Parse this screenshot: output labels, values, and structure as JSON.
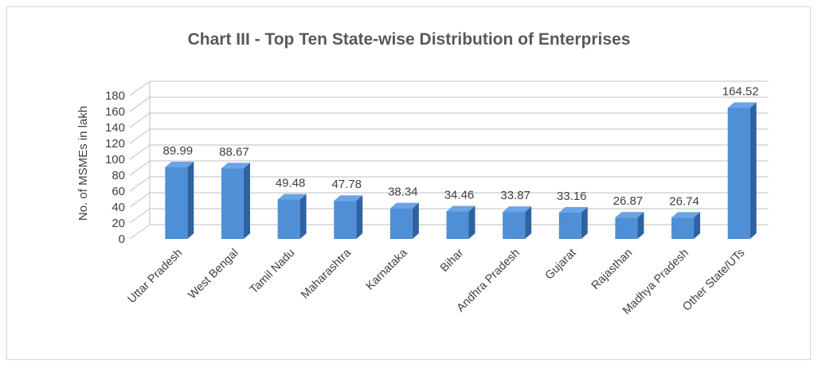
{
  "chart_data": {
    "type": "bar",
    "title": "Chart III - Top Ten State-wise Distribution of Enterprises",
    "xlabel": "",
    "ylabel": "No. of MSMEs  in  lakh",
    "ylim": [
      0,
      180
    ],
    "yticks": [
      0,
      20,
      40,
      60,
      80,
      100,
      120,
      140,
      160,
      180
    ],
    "grid": true,
    "legend": "none",
    "bar_color": "#4f8fd6",
    "categories": [
      "Uttar Pradesh",
      "West Bengal",
      "Tamil Nadu",
      "Maharashtra",
      "Karnataka",
      "Bihar",
      "Andhra Pradesh",
      "Gujarat",
      "Rajasthan",
      "Madhya Pradesh",
      "Other State/UTs"
    ],
    "values": [
      89.99,
      88.67,
      49.48,
      47.78,
      38.34,
      34.46,
      33.87,
      33.16,
      26.87,
      26.74,
      164.52
    ],
    "data_labels": [
      "89.99",
      "88.67",
      "49.48",
      "47.78",
      "38.34",
      "34.46",
      "33.87",
      "33.16",
      "26.87",
      "26.74",
      "164.52"
    ]
  }
}
